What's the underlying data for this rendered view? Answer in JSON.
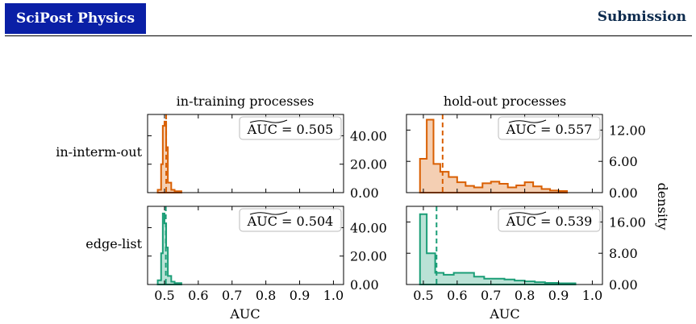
{
  "header": {
    "journal": "SciPost Physics",
    "label": "Submission",
    "journal_color": "#0a1fa6"
  },
  "figure": {
    "col_titles": [
      "in-training processes",
      "hold-out processes"
    ],
    "row_labels": [
      "in-interm-out",
      "edge-list"
    ],
    "right_ylabel": "density",
    "xlabel": "AUC"
  },
  "chart_data": [
    {
      "type": "area",
      "row": "in-interm-out",
      "column": "in-training processes",
      "color": "#d95f02",
      "xlim": [
        0.45,
        1.03
      ],
      "ylim": [
        0,
        55
      ],
      "xticks": [
        0.5,
        0.6,
        0.7,
        0.8,
        0.9,
        1.0
      ],
      "xtick_labels": [],
      "yticks": [
        0,
        20,
        40
      ],
      "ytick_labels": [
        "0.00",
        "20.00",
        "40.00"
      ],
      "median": 0.505,
      "annotation": "AUC = 0.505",
      "bins": [
        0.48,
        0.49,
        0.495,
        0.5,
        0.505,
        0.51,
        0.52,
        0.53,
        0.55
      ],
      "density": [
        2,
        20,
        47,
        50,
        32,
        7,
        2,
        1
      ]
    },
    {
      "type": "area",
      "row": "in-interm-out",
      "column": "hold-out processes",
      "color": "#d95f02",
      "xlim": [
        0.45,
        1.03
      ],
      "ylim": [
        0,
        15
      ],
      "xticks": [
        0.5,
        0.6,
        0.7,
        0.8,
        0.9,
        1.0
      ],
      "xtick_labels": [],
      "yticks": [
        0,
        6,
        12
      ],
      "ytick_labels": [
        "0.00",
        "6.00",
        "12.00"
      ],
      "median": 0.557,
      "annotation": "AUC = 0.557",
      "bins": [
        0.49,
        0.51,
        0.53,
        0.55,
        0.575,
        0.6,
        0.625,
        0.65,
        0.675,
        0.7,
        0.725,
        0.75,
        0.775,
        0.8,
        0.825,
        0.85,
        0.875,
        0.9,
        0.925
      ],
      "density": [
        6.5,
        14,
        5.5,
        4,
        3,
        2,
        1.3,
        1,
        1.8,
        2.1,
        1.7,
        1,
        1.4,
        2,
        1.2,
        0.7,
        0.4,
        0.3
      ]
    },
    {
      "type": "area",
      "row": "edge-list",
      "column": "in-training processes",
      "color": "#1b9e77",
      "xlim": [
        0.45,
        1.03
      ],
      "ylim": [
        0,
        55
      ],
      "xticks": [
        0.5,
        0.6,
        0.7,
        0.8,
        0.9,
        1.0
      ],
      "xtick_labels": [
        "0.5",
        "0.6",
        "0.7",
        "0.8",
        "0.9",
        "1.0"
      ],
      "yticks": [
        0,
        20,
        40
      ],
      "ytick_labels": [
        "0.00",
        "20.00",
        "40.00"
      ],
      "median": 0.504,
      "annotation": "AUC = 0.504",
      "bins": [
        0.48,
        0.49,
        0.495,
        0.5,
        0.505,
        0.51,
        0.52,
        0.53,
        0.55
      ],
      "density": [
        3,
        22,
        50,
        43,
        26,
        6,
        2,
        1
      ]
    },
    {
      "type": "area",
      "row": "edge-list",
      "column": "hold-out processes",
      "color": "#1b9e77",
      "xlim": [
        0.45,
        1.03
      ],
      "ylim": [
        0,
        20
      ],
      "xticks": [
        0.5,
        0.6,
        0.7,
        0.8,
        0.9,
        1.0
      ],
      "xtick_labels": [
        "0.5",
        "0.6",
        "0.7",
        "0.8",
        "0.9",
        "1.0"
      ],
      "yticks": [
        0,
        8,
        16
      ],
      "ytick_labels": [
        "0.00",
        "8.00",
        "16.00"
      ],
      "median": 0.539,
      "annotation": "AUC = 0.539",
      "bins": [
        0.49,
        0.51,
        0.535,
        0.56,
        0.59,
        0.62,
        0.65,
        0.68,
        0.71,
        0.74,
        0.77,
        0.8,
        0.83,
        0.86,
        0.9,
        0.95
      ],
      "density": [
        18,
        8,
        3,
        2.5,
        3,
        3,
        2,
        1.5,
        1.5,
        1.3,
        1,
        0.8,
        0.6,
        0.4,
        0.3
      ]
    }
  ]
}
